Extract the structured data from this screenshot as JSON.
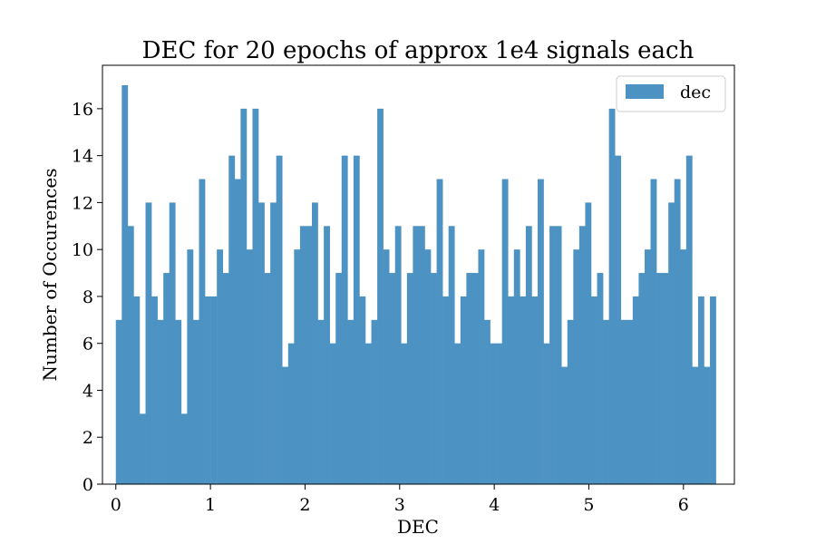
{
  "chart_data": {
    "type": "bar",
    "subtype": "histogram",
    "title": "DEC for 20 epochs of approx 1e4 signals each",
    "xlabel": "DEC",
    "ylabel": "Number of Occurences",
    "xlim": [
      -0.1414,
      6.5384
    ],
    "ylim": [
      0,
      17.85
    ],
    "x_ticks": [
      0,
      1,
      2,
      3,
      4,
      5,
      6
    ],
    "y_ticks": [
      0,
      2,
      4,
      6,
      8,
      10,
      12,
      14,
      16
    ],
    "bin_start": 0.0,
    "bin_width": 0.0628,
    "values": [
      7,
      17,
      11,
      8,
      3,
      12,
      8,
      7,
      9,
      12,
      7,
      3,
      10,
      7,
      13,
      8,
      8,
      10,
      9,
      14,
      13,
      16,
      10,
      16,
      12,
      9,
      12,
      14,
      5,
      6,
      10,
      11,
      11,
      12,
      7,
      11,
      6,
      9,
      14,
      7,
      14,
      8,
      6,
      7,
      16,
      10,
      9,
      11,
      6,
      9,
      11,
      11,
      10,
      9,
      13,
      8,
      11,
      6,
      8,
      9,
      9,
      10,
      7,
      6,
      6,
      13,
      8,
      10,
      8,
      11,
      8,
      13,
      6,
      11,
      11,
      5,
      7,
      10,
      11,
      12,
      8,
      9,
      7,
      16,
      14,
      7,
      7,
      8,
      9,
      10,
      13,
      9,
      9,
      12,
      13,
      10,
      14,
      5,
      8,
      5,
      8
    ],
    "series": [
      {
        "name": "dec",
        "color": "#4c93c3"
      }
    ],
    "legend": {
      "position": "top-right"
    },
    "grid": false
  }
}
